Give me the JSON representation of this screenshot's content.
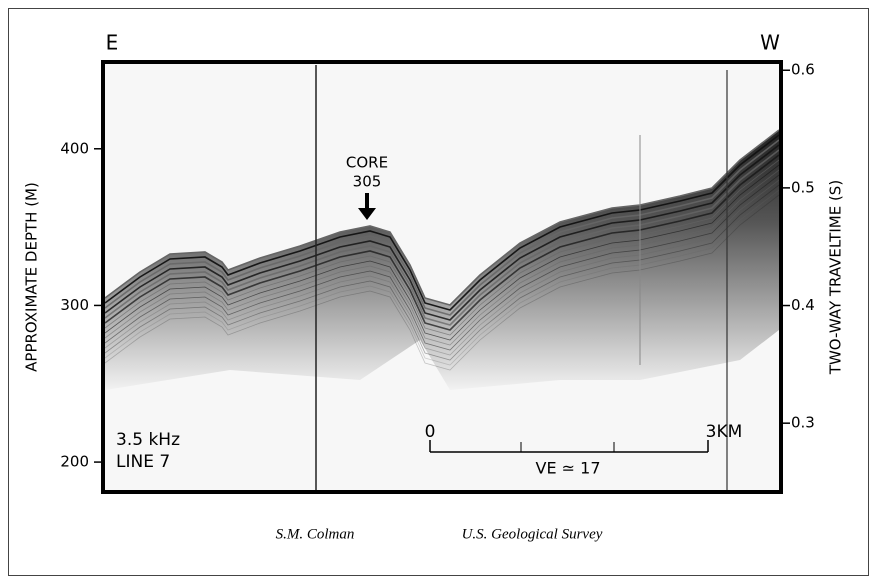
{
  "header": {
    "left": "E",
    "right": "W"
  },
  "left_axis": {
    "label": "APPROXIMATE DEPTH (M)",
    "ylim": [
      180.9,
      455.4
    ],
    "ticks": [
      200,
      300,
      400
    ]
  },
  "right_axis": {
    "label": "TWO-WAY TRAVELTIME (S)",
    "ylim": [
      0.2415,
      0.607
    ],
    "ticks": [
      0.3,
      0.4,
      0.5,
      0.6
    ]
  },
  "annotations": {
    "core": [
      "CORE",
      "305"
    ],
    "info": [
      "3.5 kHz",
      "LINE 7"
    ]
  },
  "scale_bar": {
    "start": "0",
    "end": "3KM",
    "note": "VE ≃ 17"
  },
  "credits": [
    "S.M. Colman",
    "U.S. Geological Survey"
  ]
}
